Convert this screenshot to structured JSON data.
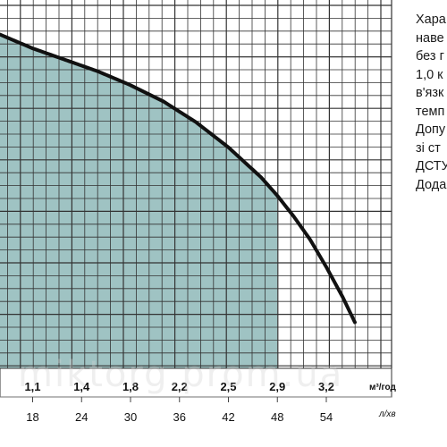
{
  "chart_data": {
    "type": "area",
    "title": "",
    "xlabel": "",
    "ylabel": "",
    "x_units": "л/хв",
    "x_secondary_units": "м³/год",
    "x_ticks": [
      18,
      24,
      30,
      36,
      42,
      48,
      54
    ],
    "x_secondary_ticks": [
      {
        "label": "1,1",
        "x": 18
      },
      {
        "label": "1,4",
        "x": 24
      },
      {
        "label": "1,8",
        "x": 30
      },
      {
        "label": "2,2",
        "x": 36
      },
      {
        "label": "2,5",
        "x": 42
      },
      {
        "label": "2,9",
        "x": 48
      },
      {
        "label": "3,2",
        "x": 54
      }
    ],
    "xlim": [
      14,
      62
    ],
    "ylim": [
      0,
      16
    ],
    "curve": {
      "x": [
        14,
        18,
        22,
        26,
        30,
        34,
        38,
        42,
        46,
        48,
        50,
        52,
        54,
        56,
        57.5
      ],
      "y": [
        14.5,
        13.9,
        13.4,
        12.9,
        12.3,
        11.6,
        10.7,
        9.6,
        8.3,
        7.5,
        6.6,
        5.6,
        4.4,
        3.1,
        2.0
      ]
    },
    "shaded_range": [
      14,
      48
    ],
    "colors": {
      "curve": "#111111",
      "fill": "#9fc3c3",
      "grid": "#333333"
    }
  },
  "side_text": {
    "lines": [
      "Хара",
      "наве",
      "без г",
      "1,0 к",
      "в'язк",
      "темп",
      "Допу",
      "зі ст",
      "ДСТУ",
      "Дода"
    ]
  },
  "watermark": "miktorg.prom.ua"
}
